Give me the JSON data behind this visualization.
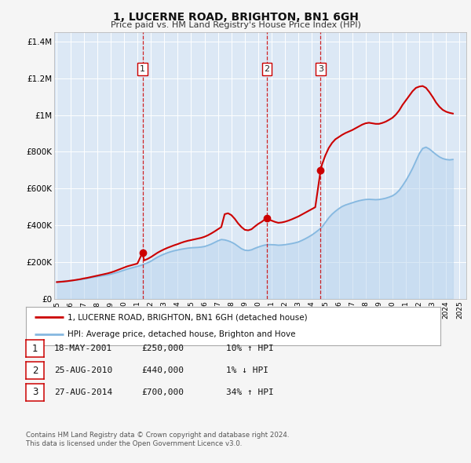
{
  "title": "1, LUCERNE ROAD, BRIGHTON, BN1 6GH",
  "subtitle": "Price paid vs. HM Land Registry's House Price Index (HPI)",
  "background_color": "#f5f5f5",
  "plot_bg_color": "#dce8f5",
  "grid_color": "#ffffff",
  "hpi_line_color": "#85b8e0",
  "hpi_fill_color": "#b8d4ee",
  "price_line_color": "#cc0000",
  "marker_color": "#cc0000",
  "vline_color": "#cc0000",
  "ylim": [
    0,
    1450000
  ],
  "xlim_start": 1994.8,
  "xlim_end": 2025.5,
  "transactions": [
    {
      "num": 1,
      "year": 2001.38,
      "price": 250000,
      "date": "18-MAY-2001",
      "pct": "10%",
      "dir": "↑"
    },
    {
      "num": 2,
      "year": 2010.65,
      "price": 440000,
      "date": "25-AUG-2010",
      "pct": "1%",
      "dir": "↓"
    },
    {
      "num": 3,
      "year": 2014.65,
      "price": 700000,
      "date": "27-AUG-2014",
      "pct": "34%",
      "dir": "↑"
    }
  ],
  "legend_label_price": "1, LUCERNE ROAD, BRIGHTON, BN1 6GH (detached house)",
  "legend_label_hpi": "HPI: Average price, detached house, Brighton and Hove",
  "footnote1": "Contains HM Land Registry data © Crown copyright and database right 2024.",
  "footnote2": "This data is licensed under the Open Government Licence v3.0.",
  "ytick_labels": [
    "£0",
    "£200K",
    "£400K",
    "£600K",
    "£800K",
    "£1M",
    "£1.2M",
    "£1.4M"
  ],
  "ytick_values": [
    0,
    200000,
    400000,
    600000,
    800000,
    1000000,
    1200000,
    1400000
  ],
  "hpi_data": [
    [
      1995.0,
      92000
    ],
    [
      1995.25,
      93500
    ],
    [
      1995.5,
      95000
    ],
    [
      1995.75,
      96500
    ],
    [
      1996.0,
      98000
    ],
    [
      1996.25,
      100000
    ],
    [
      1996.5,
      102000
    ],
    [
      1996.75,
      104000
    ],
    [
      1997.0,
      107000
    ],
    [
      1997.25,
      110000
    ],
    [
      1997.5,
      114000
    ],
    [
      1997.75,
      117000
    ],
    [
      1998.0,
      120000
    ],
    [
      1998.25,
      123000
    ],
    [
      1998.5,
      126000
    ],
    [
      1998.75,
      129000
    ],
    [
      1999.0,
      133000
    ],
    [
      1999.25,
      138000
    ],
    [
      1999.5,
      143000
    ],
    [
      1999.75,
      149000
    ],
    [
      2000.0,
      155000
    ],
    [
      2000.25,
      161000
    ],
    [
      2000.5,
      166000
    ],
    [
      2000.75,
      171000
    ],
    [
      2001.0,
      176000
    ],
    [
      2001.25,
      181000
    ],
    [
      2001.5,
      188000
    ],
    [
      2001.75,
      195000
    ],
    [
      2002.0,
      204000
    ],
    [
      2002.25,
      215000
    ],
    [
      2002.5,
      226000
    ],
    [
      2002.75,
      235000
    ],
    [
      2003.0,
      243000
    ],
    [
      2003.25,
      250000
    ],
    [
      2003.5,
      256000
    ],
    [
      2003.75,
      261000
    ],
    [
      2004.0,
      265000
    ],
    [
      2004.25,
      269000
    ],
    [
      2004.5,
      272000
    ],
    [
      2004.75,
      275000
    ],
    [
      2005.0,
      277000
    ],
    [
      2005.25,
      278000
    ],
    [
      2005.5,
      279000
    ],
    [
      2005.75,
      281000
    ],
    [
      2006.0,
      284000
    ],
    [
      2006.25,
      290000
    ],
    [
      2006.5,
      297000
    ],
    [
      2006.75,
      306000
    ],
    [
      2007.0,
      315000
    ],
    [
      2007.25,
      322000
    ],
    [
      2007.5,
      320000
    ],
    [
      2007.75,
      315000
    ],
    [
      2008.0,
      308000
    ],
    [
      2008.25,
      298000
    ],
    [
      2008.5,
      285000
    ],
    [
      2008.75,
      272000
    ],
    [
      2009.0,
      264000
    ],
    [
      2009.25,
      262000
    ],
    [
      2009.5,
      266000
    ],
    [
      2009.75,
      274000
    ],
    [
      2010.0,
      281000
    ],
    [
      2010.25,
      287000
    ],
    [
      2010.5,
      292000
    ],
    [
      2010.75,
      294000
    ],
    [
      2011.0,
      294000
    ],
    [
      2011.25,
      293000
    ],
    [
      2011.5,
      291000
    ],
    [
      2011.75,
      292000
    ],
    [
      2012.0,
      294000
    ],
    [
      2012.25,
      297000
    ],
    [
      2012.5,
      300000
    ],
    [
      2012.75,
      304000
    ],
    [
      2013.0,
      309000
    ],
    [
      2013.25,
      317000
    ],
    [
      2013.5,
      326000
    ],
    [
      2013.75,
      336000
    ],
    [
      2014.0,
      347000
    ],
    [
      2014.25,
      360000
    ],
    [
      2014.5,
      374000
    ],
    [
      2014.75,
      390000
    ],
    [
      2015.0,
      415000
    ],
    [
      2015.25,
      440000
    ],
    [
      2015.5,
      460000
    ],
    [
      2015.75,
      476000
    ],
    [
      2016.0,
      490000
    ],
    [
      2016.25,
      502000
    ],
    [
      2016.5,
      510000
    ],
    [
      2016.75,
      516000
    ],
    [
      2017.0,
      522000
    ],
    [
      2017.25,
      528000
    ],
    [
      2017.5,
      533000
    ],
    [
      2017.75,
      537000
    ],
    [
      2018.0,
      540000
    ],
    [
      2018.25,
      541000
    ],
    [
      2018.5,
      540000
    ],
    [
      2018.75,
      539000
    ],
    [
      2019.0,
      540000
    ],
    [
      2019.25,
      543000
    ],
    [
      2019.5,
      547000
    ],
    [
      2019.75,
      553000
    ],
    [
      2020.0,
      560000
    ],
    [
      2020.25,
      572000
    ],
    [
      2020.5,
      590000
    ],
    [
      2020.75,
      615000
    ],
    [
      2021.0,
      643000
    ],
    [
      2021.25,
      675000
    ],
    [
      2021.5,
      710000
    ],
    [
      2021.75,
      750000
    ],
    [
      2022.0,
      790000
    ],
    [
      2022.25,
      818000
    ],
    [
      2022.5,
      825000
    ],
    [
      2022.75,
      815000
    ],
    [
      2023.0,
      800000
    ],
    [
      2023.25,
      785000
    ],
    [
      2023.5,
      772000
    ],
    [
      2023.75,
      763000
    ],
    [
      2024.0,
      758000
    ],
    [
      2024.25,
      756000
    ],
    [
      2024.5,
      758000
    ]
  ],
  "price_data": [
    [
      1995.0,
      90000
    ],
    [
      1995.25,
      91500
    ],
    [
      1995.5,
      93000
    ],
    [
      1995.75,
      95000
    ],
    [
      1996.0,
      97500
    ],
    [
      1996.25,
      100000
    ],
    [
      1996.5,
      103000
    ],
    [
      1996.75,
      106000
    ],
    [
      1997.0,
      110000
    ],
    [
      1997.25,
      113000
    ],
    [
      1997.5,
      117000
    ],
    [
      1997.75,
      121000
    ],
    [
      1998.0,
      125000
    ],
    [
      1998.25,
      129000
    ],
    [
      1998.5,
      133000
    ],
    [
      1998.75,
      137000
    ],
    [
      1999.0,
      142000
    ],
    [
      1999.25,
      148000
    ],
    [
      1999.5,
      155000
    ],
    [
      1999.75,
      162000
    ],
    [
      2000.0,
      169000
    ],
    [
      2000.25,
      176000
    ],
    [
      2000.5,
      181000
    ],
    [
      2000.75,
      186000
    ],
    [
      2001.0,
      191000
    ],
    [
      2001.38,
      250000
    ],
    [
      2001.5,
      208000
    ],
    [
      2001.75,
      216000
    ],
    [
      2002.0,
      226000
    ],
    [
      2002.25,
      238000
    ],
    [
      2002.5,
      250000
    ],
    [
      2002.75,
      260000
    ],
    [
      2003.0,
      269000
    ],
    [
      2003.25,
      277000
    ],
    [
      2003.5,
      284000
    ],
    [
      2003.75,
      291000
    ],
    [
      2004.0,
      297000
    ],
    [
      2004.25,
      304000
    ],
    [
      2004.5,
      310000
    ],
    [
      2004.75,
      315000
    ],
    [
      2005.0,
      319000
    ],
    [
      2005.25,
      323000
    ],
    [
      2005.5,
      327000
    ],
    [
      2005.75,
      331000
    ],
    [
      2006.0,
      337000
    ],
    [
      2006.25,
      345000
    ],
    [
      2006.5,
      355000
    ],
    [
      2006.75,
      366000
    ],
    [
      2007.0,
      378000
    ],
    [
      2007.25,
      390000
    ],
    [
      2007.5,
      460000
    ],
    [
      2007.75,
      465000
    ],
    [
      2008.0,
      455000
    ],
    [
      2008.25,
      435000
    ],
    [
      2008.5,
      410000
    ],
    [
      2008.75,
      390000
    ],
    [
      2009.0,
      375000
    ],
    [
      2009.25,
      372000
    ],
    [
      2009.5,
      378000
    ],
    [
      2009.75,
      393000
    ],
    [
      2010.0,
      407000
    ],
    [
      2010.25,
      418000
    ],
    [
      2010.65,
      440000
    ],
    [
      2010.75,
      432000
    ],
    [
      2011.0,
      425000
    ],
    [
      2011.25,
      418000
    ],
    [
      2011.5,
      413000
    ],
    [
      2011.75,
      415000
    ],
    [
      2012.0,
      419000
    ],
    [
      2012.25,
      425000
    ],
    [
      2012.5,
      432000
    ],
    [
      2012.75,
      440000
    ],
    [
      2013.0,
      448000
    ],
    [
      2013.25,
      458000
    ],
    [
      2013.5,
      468000
    ],
    [
      2013.75,
      478000
    ],
    [
      2014.0,
      488000
    ],
    [
      2014.25,
      498000
    ],
    [
      2014.65,
      700000
    ],
    [
      2014.75,
      730000
    ],
    [
      2015.0,
      780000
    ],
    [
      2015.25,
      820000
    ],
    [
      2015.5,
      848000
    ],
    [
      2015.75,
      868000
    ],
    [
      2016.0,
      880000
    ],
    [
      2016.25,
      892000
    ],
    [
      2016.5,
      902000
    ],
    [
      2016.75,
      910000
    ],
    [
      2017.0,
      918000
    ],
    [
      2017.25,
      928000
    ],
    [
      2017.5,
      938000
    ],
    [
      2017.75,
      948000
    ],
    [
      2018.0,
      955000
    ],
    [
      2018.25,
      958000
    ],
    [
      2018.5,
      955000
    ],
    [
      2018.75,
      952000
    ],
    [
      2019.0,
      952000
    ],
    [
      2019.25,
      957000
    ],
    [
      2019.5,
      964000
    ],
    [
      2019.75,
      974000
    ],
    [
      2020.0,
      985000
    ],
    [
      2020.25,
      1002000
    ],
    [
      2020.5,
      1025000
    ],
    [
      2020.75,
      1055000
    ],
    [
      2021.0,
      1080000
    ],
    [
      2021.25,
      1105000
    ],
    [
      2021.5,
      1130000
    ],
    [
      2021.75,
      1148000
    ],
    [
      2022.0,
      1155000
    ],
    [
      2022.25,
      1158000
    ],
    [
      2022.5,
      1148000
    ],
    [
      2022.75,
      1125000
    ],
    [
      2023.0,
      1098000
    ],
    [
      2023.25,
      1068000
    ],
    [
      2023.5,
      1045000
    ],
    [
      2023.75,
      1028000
    ],
    [
      2024.0,
      1018000
    ],
    [
      2024.25,
      1012000
    ],
    [
      2024.5,
      1008000
    ]
  ]
}
